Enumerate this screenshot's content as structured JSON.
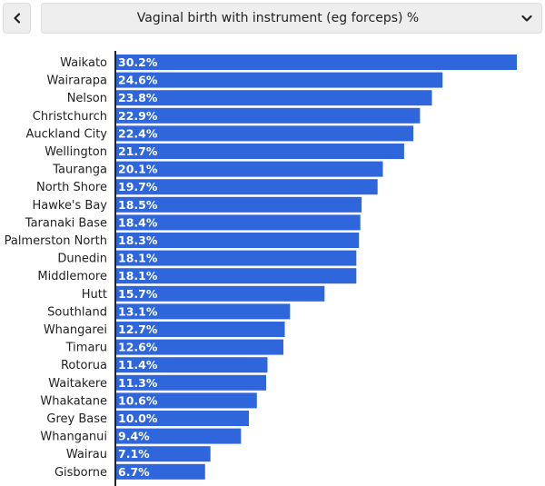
{
  "header": {
    "back_icon": "chevron-left-icon",
    "dropdown_icon": "chevron-down-icon",
    "selected_metric": "Vaginal birth with instrument (eg forceps) %"
  },
  "colors": {
    "bar": "#2f66dc",
    "axis": "#222222",
    "control_bg": "#eeeeee"
  },
  "chart_data": {
    "type": "bar",
    "orientation": "horizontal",
    "title": "",
    "xlabel": "",
    "ylabel": "",
    "xlim": [
      0,
      31
    ],
    "grid": false,
    "categories": [
      "Waikato",
      "Wairarapa",
      "Nelson",
      "Christchurch",
      "Auckland City",
      "Wellington",
      "Tauranga",
      "North Shore",
      "Hawke's Bay",
      "Taranaki Base",
      "Palmerston North",
      "Dunedin",
      "Middlemore",
      "Hutt",
      "Southland",
      "Whangarei",
      "Timaru",
      "Rotorua",
      "Waitakere",
      "Whakatane",
      "Grey Base",
      "Whanganui",
      "Wairau",
      "Gisborne"
    ],
    "values": [
      30.2,
      24.6,
      23.8,
      22.9,
      22.4,
      21.7,
      20.1,
      19.7,
      18.5,
      18.4,
      18.3,
      18.1,
      18.1,
      15.7,
      13.1,
      12.7,
      12.6,
      11.4,
      11.3,
      10.6,
      10.0,
      9.4,
      7.1,
      6.7
    ],
    "value_labels": [
      "30.2%",
      "24.6%",
      "23.8%",
      "22.9%",
      "22.4%",
      "21.7%",
      "20.1%",
      "19.7%",
      "18.5%",
      "18.4%",
      "18.3%",
      "18.1%",
      "18.1%",
      "15.7%",
      "13.1%",
      "12.7%",
      "12.6%",
      "11.4%",
      "11.3%",
      "10.6%",
      "10.0%",
      "9.4%",
      "7.1%",
      "6.7%"
    ]
  }
}
